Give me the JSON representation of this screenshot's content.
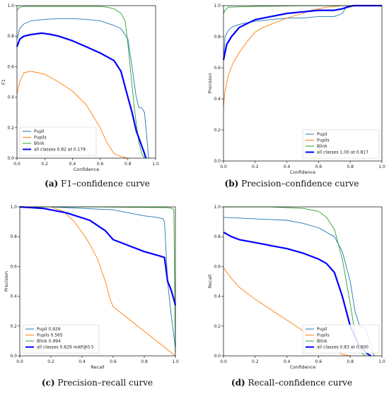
{
  "colors": {
    "pupil": "#1f77b4",
    "pupils": "#ff7f0e",
    "blink": "#2ca02c",
    "all": "#0000ff"
  },
  "captions": [
    {
      "tag": "(a)",
      "text": "F1–confidence curve"
    },
    {
      "tag": "(b)",
      "text": "Precision–confidence curve"
    },
    {
      "tag": "(c)",
      "text": "Precision–recall curve"
    },
    {
      "tag": "(d)",
      "text": "Recall–confidence curve"
    }
  ],
  "chart_data": [
    {
      "type": "line",
      "xlabel": "Confidence",
      "ylabel": "F1",
      "xlim": [
        0,
        1
      ],
      "ylim": [
        0,
        1
      ],
      "xticks": [
        "0.0",
        "0.2",
        "0.4",
        "0.6",
        "0.8",
        "1.0"
      ],
      "yticks": [
        "0.0",
        "0.2",
        "0.4",
        "0.6",
        "0.8",
        "1.0"
      ],
      "grid": false,
      "legend_position": "bottom-left",
      "series": [
        {
          "name": "Pupil",
          "key": "pupil",
          "x": [
            0,
            0.02,
            0.05,
            0.1,
            0.2,
            0.3,
            0.4,
            0.5,
            0.6,
            0.7,
            0.75,
            0.8,
            0.83,
            0.86,
            0.88,
            0.9,
            0.92,
            0.93,
            0.95
          ],
          "y": [
            0.78,
            0.85,
            0.88,
            0.9,
            0.91,
            0.915,
            0.915,
            0.91,
            0.9,
            0.87,
            0.85,
            0.78,
            0.6,
            0.4,
            0.33,
            0.33,
            0.3,
            0.2,
            0
          ]
        },
        {
          "name": "Pupils",
          "key": "pupils",
          "x": [
            0,
            0.02,
            0.05,
            0.1,
            0.15,
            0.2,
            0.3,
            0.4,
            0.5,
            0.6,
            0.65,
            0.7,
            0.75,
            0.8
          ],
          "y": [
            0.42,
            0.5,
            0.56,
            0.57,
            0.56,
            0.55,
            0.5,
            0.44,
            0.35,
            0.2,
            0.1,
            0.03,
            0.01,
            0
          ]
        },
        {
          "name": "Blink",
          "key": "blink",
          "x": [
            0,
            0.02,
            0.05,
            0.2,
            0.4,
            0.6,
            0.65,
            0.7,
            0.75,
            0.78,
            0.8,
            0.85,
            0.88,
            0.9,
            0.92
          ],
          "y": [
            0.97,
            0.99,
            0.995,
            0.995,
            0.995,
            0.995,
            0.99,
            0.98,
            0.95,
            0.9,
            0.75,
            0.3,
            0.1,
            0.03,
            0
          ]
        },
        {
          "name": "all classes 0.82 at 0.179",
          "key": "all",
          "x": [
            0,
            0.02,
            0.05,
            0.1,
            0.18,
            0.25,
            0.3,
            0.4,
            0.5,
            0.6,
            0.7,
            0.75,
            0.8,
            0.83,
            0.86,
            0.88,
            0.9,
            0.92,
            0.93
          ],
          "y": [
            0.73,
            0.78,
            0.8,
            0.81,
            0.82,
            0.81,
            0.8,
            0.77,
            0.73,
            0.69,
            0.64,
            0.57,
            0.4,
            0.3,
            0.18,
            0.13,
            0.08,
            0.03,
            0
          ]
        }
      ]
    },
    {
      "type": "line",
      "xlabel": "Confidence",
      "ylabel": "Precision",
      "xlim": [
        0,
        1
      ],
      "ylim": [
        0,
        1
      ],
      "xticks": [
        "0.0",
        "0.2",
        "0.4",
        "0.6",
        "0.8",
        "1.0"
      ],
      "yticks": [
        "0.0",
        "0.2",
        "0.4",
        "0.6",
        "0.8",
        "1.0"
      ],
      "grid": false,
      "legend_position": "bottom-right",
      "series": [
        {
          "name": "Pupil",
          "key": "pupil",
          "x": [
            0,
            0.01,
            0.03,
            0.05,
            0.1,
            0.2,
            0.3,
            0.4,
            0.5,
            0.6,
            0.7,
            0.75,
            0.78,
            0.8,
            1.0
          ],
          "y": [
            0.65,
            0.8,
            0.84,
            0.86,
            0.88,
            0.9,
            0.91,
            0.92,
            0.92,
            0.93,
            0.93,
            0.95,
            1.0,
            1.0,
            1.0
          ]
        },
        {
          "name": "Pupils",
          "key": "pupils",
          "x": [
            0,
            0.01,
            0.03,
            0.06,
            0.1,
            0.15,
            0.2,
            0.25,
            0.3,
            0.4,
            0.5,
            0.55,
            0.6,
            0.65,
            0.75,
            1.0
          ],
          "y": [
            0.35,
            0.45,
            0.55,
            0.63,
            0.7,
            0.77,
            0.83,
            0.86,
            0.88,
            0.92,
            0.95,
            0.97,
            0.98,
            0.99,
            1.0,
            1.0
          ]
        },
        {
          "name": "Blink",
          "key": "blink",
          "x": [
            0,
            0.01,
            0.03,
            0.2,
            0.5,
            1.0
          ],
          "y": [
            0.95,
            0.97,
            0.99,
            0.995,
            1.0,
            1.0
          ]
        },
        {
          "name": "all classes 1.00 at 0.817",
          "key": "all",
          "x": [
            0,
            0.02,
            0.05,
            0.1,
            0.2,
            0.3,
            0.4,
            0.5,
            0.6,
            0.7,
            0.75,
            0.78,
            0.82,
            1.0
          ],
          "y": [
            0.65,
            0.75,
            0.8,
            0.86,
            0.91,
            0.93,
            0.95,
            0.96,
            0.97,
            0.97,
            0.98,
            0.99,
            1.0,
            1.0
          ]
        }
      ]
    },
    {
      "type": "line",
      "xlabel": "Recall",
      "ylabel": "Precision",
      "xlim": [
        0,
        1
      ],
      "ylim": [
        0,
        1
      ],
      "xticks": [
        "0.0",
        "0.2",
        "0.4",
        "0.6",
        "0.8",
        "1.0"
      ],
      "yticks": [
        "0.0",
        "0.2",
        "0.4",
        "0.6",
        "0.8",
        "1.0"
      ],
      "grid": false,
      "legend_position": "bottom-left",
      "series": [
        {
          "name": "Pupil 0.929",
          "key": "pupil",
          "x": [
            0,
            0.2,
            0.4,
            0.6,
            0.7,
            0.8,
            0.88,
            0.92,
            0.93,
            0.95,
            0.97,
            1.0
          ],
          "y": [
            1.0,
            1.0,
            0.99,
            0.98,
            0.96,
            0.94,
            0.93,
            0.92,
            0.9,
            0.5,
            0.3,
            0.05
          ]
        },
        {
          "name": "Pupils 0.565",
          "key": "pupils",
          "x": [
            0,
            0.2,
            0.28,
            0.35,
            0.4,
            0.45,
            0.5,
            0.55,
            0.58,
            0.6,
            1.0
          ],
          "y": [
            1.0,
            1.0,
            0.97,
            0.9,
            0.83,
            0.75,
            0.65,
            0.5,
            0.38,
            0.33,
            0.0
          ]
        },
        {
          "name": "Blink 0.994",
          "key": "blink",
          "x": [
            0,
            0.5,
            0.95,
            0.98,
            0.99,
            1.0
          ],
          "y": [
            1.0,
            1.0,
            0.995,
            0.99,
            0.98,
            0.02
          ]
        },
        {
          "name": "all classes 0.829 mAP@0.5",
          "key": "all",
          "x": [
            0,
            0.15,
            0.3,
            0.45,
            0.55,
            0.6,
            0.7,
            0.8,
            0.9,
            0.93,
            0.95,
            0.97,
            0.99,
            1.0
          ],
          "y": [
            1.0,
            0.99,
            0.96,
            0.91,
            0.84,
            0.78,
            0.74,
            0.7,
            0.67,
            0.66,
            0.5,
            0.45,
            0.38,
            0.34
          ]
        }
      ]
    },
    {
      "type": "line",
      "xlabel": "Confidence",
      "ylabel": "Recall",
      "xlim": [
        0,
        1
      ],
      "ylim": [
        0,
        1
      ],
      "xticks": [
        "0.0",
        "0.2",
        "0.4",
        "0.6",
        "0.8",
        "1.0"
      ],
      "yticks": [
        "0.0",
        "0.2",
        "0.4",
        "0.6",
        "0.8",
        "1.0"
      ],
      "grid": false,
      "legend_position": "bottom-right",
      "series": [
        {
          "name": "Pupil",
          "key": "pupil",
          "x": [
            0,
            0.2,
            0.4,
            0.5,
            0.6,
            0.7,
            0.75,
            0.8,
            0.83,
            0.86,
            0.9,
            0.92,
            0.95
          ],
          "y": [
            0.93,
            0.92,
            0.91,
            0.89,
            0.86,
            0.8,
            0.7,
            0.5,
            0.3,
            0.2,
            0.18,
            0.1,
            0
          ]
        },
        {
          "name": "Pupils",
          "key": "pupils",
          "x": [
            0,
            0.05,
            0.1,
            0.2,
            0.3,
            0.4,
            0.5,
            0.6,
            0.7,
            0.75,
            0.8
          ],
          "y": [
            0.59,
            0.52,
            0.46,
            0.38,
            0.31,
            0.24,
            0.17,
            0.1,
            0.04,
            0.01,
            0
          ]
        },
        {
          "name": "Blink",
          "key": "blink",
          "x": [
            0,
            0.3,
            0.5,
            0.6,
            0.65,
            0.7,
            0.75,
            0.8,
            0.83,
            0.86,
            0.88,
            0.9
          ],
          "y": [
            1.0,
            1.0,
            0.99,
            0.97,
            0.93,
            0.85,
            0.65,
            0.35,
            0.15,
            0.05,
            0.01,
            0
          ]
        },
        {
          "name": "all classes 0.83 at 0.000",
          "key": "all",
          "x": [
            0,
            0.05,
            0.1,
            0.2,
            0.3,
            0.4,
            0.5,
            0.6,
            0.65,
            0.7,
            0.75,
            0.8,
            0.85,
            0.9,
            0.93
          ],
          "y": [
            0.83,
            0.8,
            0.78,
            0.76,
            0.74,
            0.72,
            0.69,
            0.65,
            0.62,
            0.56,
            0.4,
            0.2,
            0.08,
            0.02,
            0
          ]
        }
      ]
    }
  ]
}
